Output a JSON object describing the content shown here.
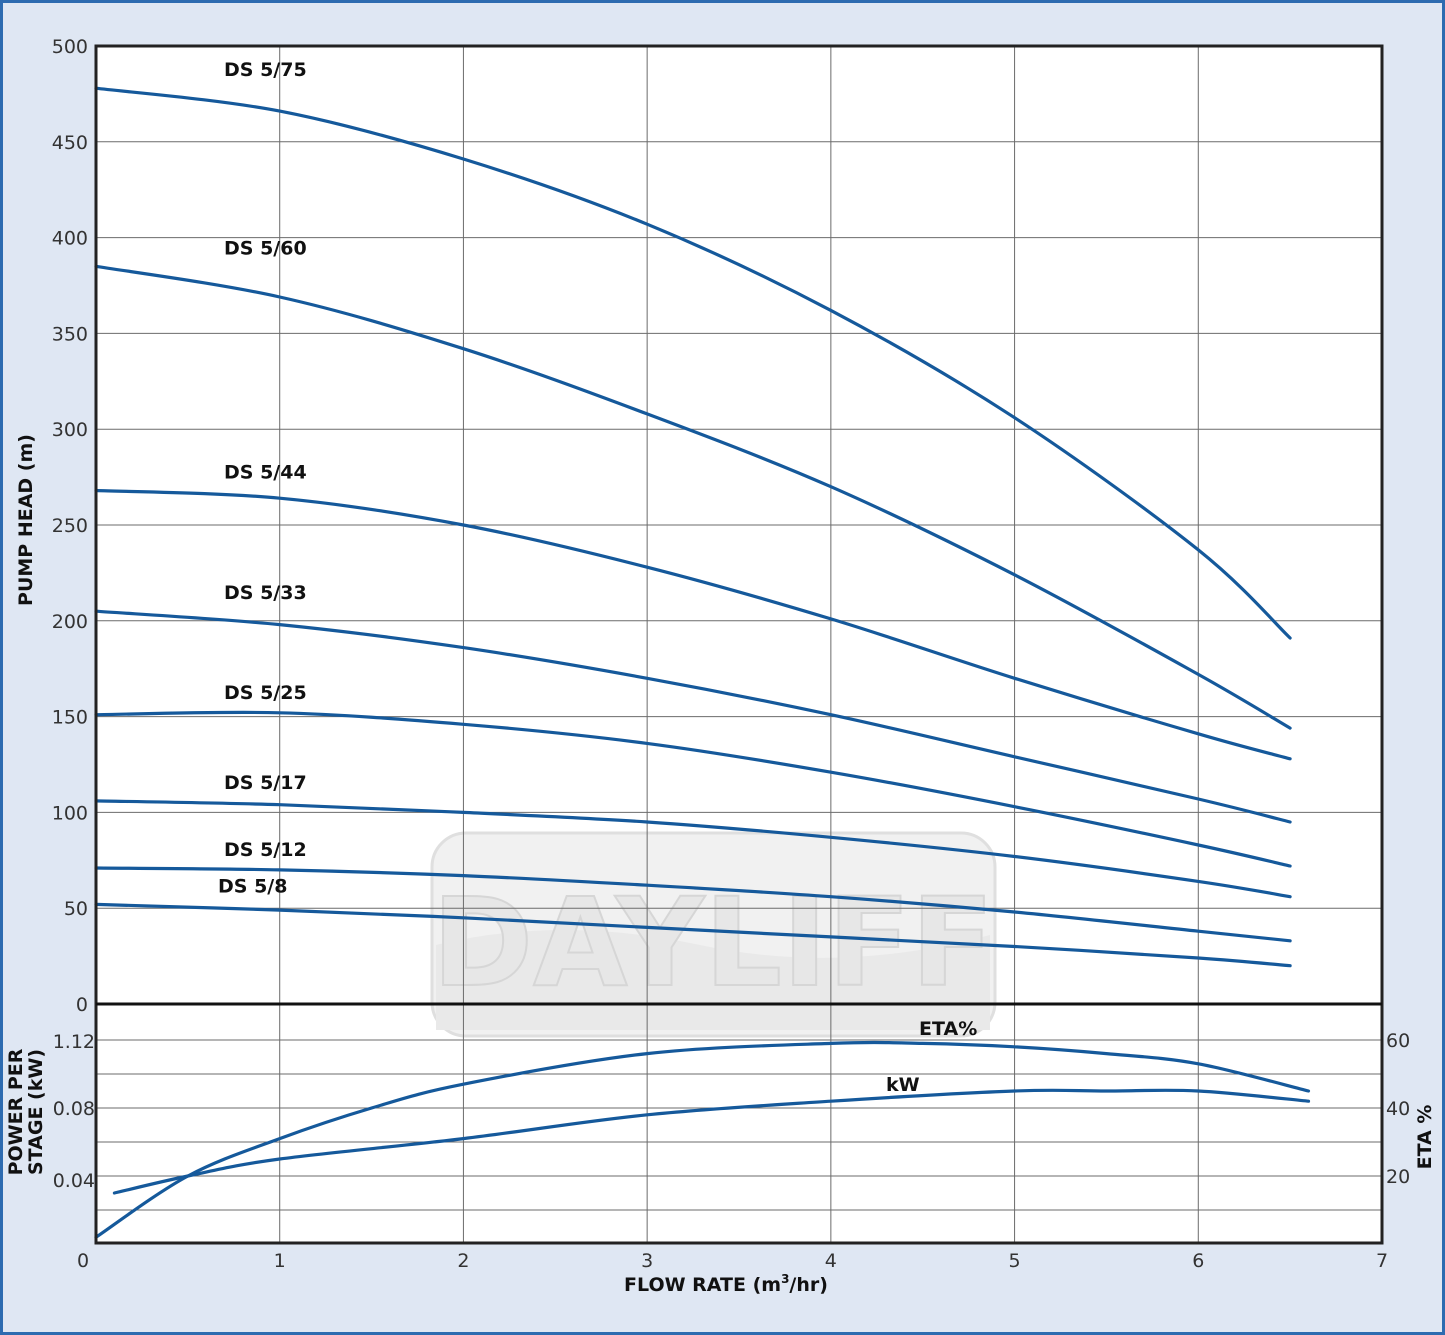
{
  "chart_data": [
    {
      "type": "line",
      "ylabel": "PUMP HEAD (m)",
      "xlim": [
        0,
        7
      ],
      "ylim": [
        0,
        500
      ],
      "xticks": [
        0,
        1,
        2,
        3,
        4,
        5,
        6,
        7
      ],
      "yticks": [
        "0",
        "50",
        "100",
        "150",
        "200",
        "250",
        "300",
        "350",
        "400",
        "450",
        "500"
      ],
      "grid": true,
      "series": [
        {
          "name": "DS 5/75",
          "x": [
            0,
            1,
            2,
            3,
            4,
            5,
            6,
            6.5
          ],
          "y": [
            478,
            466,
            441,
            407,
            362,
            306,
            237,
            191
          ]
        },
        {
          "name": "DS 5/60",
          "x": [
            0,
            1,
            2,
            3,
            4,
            5,
            6,
            6.5
          ],
          "y": [
            385,
            369,
            342,
            308,
            270,
            224,
            172,
            144
          ]
        },
        {
          "name": "DS 5/44",
          "x": [
            0,
            1,
            2,
            3,
            4,
            5,
            6,
            6.5
          ],
          "y": [
            268,
            264,
            250,
            228,
            201,
            170,
            141,
            128
          ]
        },
        {
          "name": "DS 5/33",
          "x": [
            0,
            1,
            2,
            3,
            4,
            5,
            6,
            6.5
          ],
          "y": [
            205,
            198,
            186,
            170,
            151,
            129,
            107,
            95
          ]
        },
        {
          "name": "DS 5/25",
          "x": [
            0,
            1,
            2,
            3,
            4,
            5,
            6,
            6.5
          ],
          "y": [
            151,
            152,
            146,
            136,
            121,
            103,
            83,
            72
          ]
        },
        {
          "name": "DS 5/17",
          "x": [
            0,
            1,
            2,
            3,
            4,
            5,
            6,
            6.5
          ],
          "y": [
            106,
            104,
            100,
            95,
            87,
            77,
            64,
            56
          ]
        },
        {
          "name": "DS 5/12",
          "x": [
            0,
            1,
            2,
            3,
            4,
            5,
            6,
            6.5
          ],
          "y": [
            71,
            70,
            67,
            62,
            56,
            48,
            38,
            33
          ]
        },
        {
          "name": "DS 5/8",
          "x": [
            0,
            1,
            2,
            3,
            4,
            5,
            6,
            6.5
          ],
          "y": [
            52,
            49,
            45,
            40,
            35,
            30,
            24,
            20
          ]
        }
      ]
    },
    {
      "type": "line",
      "xlabel_main": "FLOW RATE (m",
      "xlabel_sup": "3",
      "xlabel_end": "/hr)",
      "ylabel_line1": "POWER PER",
      "ylabel_line2": "STAGE (kW)",
      "y2label": "ETA %",
      "xlim": [
        0,
        7
      ],
      "xticks": [
        0,
        1,
        2,
        3,
        4,
        5,
        6,
        7
      ],
      "yticks_left": [
        "0.04",
        "0.08",
        "1.12"
      ],
      "yticks_right": [
        "20",
        "40",
        "60"
      ],
      "grid": true,
      "series": [
        {
          "name": "ETA%",
          "axis": "right",
          "x": [
            0,
            0.5,
            1,
            1.5,
            2,
            3,
            4,
            4.5,
            5,
            5.5,
            6,
            6.6
          ],
          "y": [
            2,
            20,
            31,
            40,
            47,
            56,
            59,
            59,
            58,
            56,
            53,
            45
          ]
        },
        {
          "name": "kW",
          "axis": "right",
          "x": [
            0.1,
            0.5,
            1,
            2,
            3,
            4,
            5,
            5.5,
            6,
            6.6
          ],
          "y": [
            15,
            20,
            25,
            31,
            38,
            42,
            45,
            45,
            45,
            42
          ]
        }
      ]
    }
  ],
  "watermark": "DAYLIFF"
}
